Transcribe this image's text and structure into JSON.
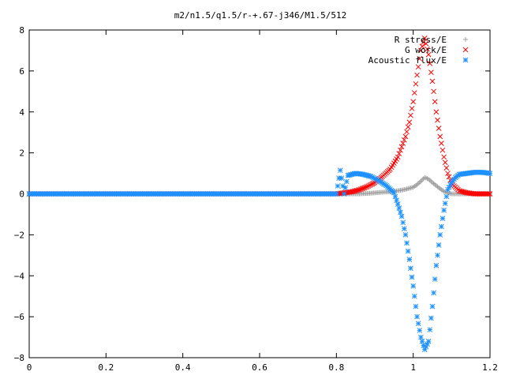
{
  "chart_data": {
    "type": "scatter",
    "title": "m2/n1.5/q1.5/r-+.67-j346/M1.5/512",
    "xlabel": "",
    "ylabel": "",
    "xlim": [
      0,
      1.2
    ],
    "ylim": [
      -8,
      8
    ],
    "x_ticks": [
      "0",
      "0.2",
      "0.4",
      "0.6",
      "0.8",
      "1",
      "1.2"
    ],
    "y_ticks": [
      "8",
      "6",
      "4",
      "2",
      "0",
      "−2",
      "−4",
      "−6",
      "−8"
    ],
    "grid": false,
    "legend_position": "top-right",
    "series": [
      {
        "name": "R stress/E",
        "color": "#a0a0a0",
        "marker": "plus",
        "x": [
          0.0,
          0.1,
          0.2,
          0.3,
          0.4,
          0.5,
          0.6,
          0.7,
          0.8,
          0.82,
          0.84,
          0.86,
          0.88,
          0.9,
          0.92,
          0.94,
          0.96,
          0.98,
          1.0,
          1.01,
          1.02,
          1.03,
          1.04,
          1.05,
          1.06,
          1.07,
          1.08,
          1.09,
          1.1,
          1.12,
          1.14,
          1.16,
          1.18,
          1.2
        ],
        "y": [
          0.0,
          0.0,
          0.0,
          0.0,
          0.0,
          0.0,
          0.0,
          0.0,
          0.0,
          0.0,
          0.0,
          0.0,
          0.02,
          0.05,
          0.08,
          0.1,
          0.15,
          0.22,
          0.32,
          0.45,
          0.62,
          0.8,
          0.72,
          0.55,
          0.4,
          0.25,
          0.12,
          0.05,
          0.0,
          0.0,
          0.0,
          0.0,
          0.0,
          0.0
        ]
      },
      {
        "name": "G work/E",
        "color": "#ff0000",
        "marker": "cross",
        "x": [
          0.0,
          0.1,
          0.2,
          0.3,
          0.4,
          0.5,
          0.6,
          0.7,
          0.8,
          0.82,
          0.84,
          0.86,
          0.88,
          0.9,
          0.92,
          0.94,
          0.96,
          0.98,
          0.99,
          1.0,
          1.01,
          1.02,
          1.03,
          1.04,
          1.05,
          1.06,
          1.07,
          1.08,
          1.09,
          1.1,
          1.12,
          1.14,
          1.16,
          1.18,
          1.2
        ],
        "y": [
          0.0,
          0.0,
          0.0,
          0.0,
          0.0,
          0.0,
          0.0,
          0.0,
          0.0,
          0.05,
          0.1,
          0.2,
          0.35,
          0.55,
          0.85,
          1.2,
          1.8,
          2.8,
          3.5,
          4.5,
          5.8,
          7.0,
          7.6,
          6.8,
          5.5,
          4.0,
          2.8,
          1.8,
          1.0,
          0.5,
          0.15,
          0.05,
          0.0,
          0.0,
          0.0
        ]
      },
      {
        "name": "Acoustic flux/E",
        "color": "#1e90ff",
        "marker": "star",
        "x": [
          0.0,
          0.1,
          0.2,
          0.3,
          0.4,
          0.5,
          0.6,
          0.7,
          0.8,
          0.81,
          0.82,
          0.83,
          0.85,
          0.87,
          0.89,
          0.91,
          0.93,
          0.95,
          0.96,
          0.97,
          0.98,
          0.99,
          1.0,
          1.01,
          1.02,
          1.03,
          1.04,
          1.05,
          1.06,
          1.07,
          1.08,
          1.09,
          1.1,
          1.11,
          1.12,
          1.14,
          1.16,
          1.18,
          1.2
        ],
        "y": [
          0.0,
          0.0,
          0.0,
          0.0,
          0.0,
          0.0,
          0.0,
          0.0,
          0.0,
          1.15,
          0.0,
          0.9,
          1.0,
          0.95,
          0.85,
          0.65,
          0.4,
          0.05,
          -0.5,
          -1.1,
          -2.0,
          -3.2,
          -4.5,
          -6.0,
          -7.0,
          -7.6,
          -7.2,
          -5.5,
          -3.5,
          -2.0,
          -0.8,
          0.2,
          0.55,
          0.8,
          0.95,
          1.0,
          1.05,
          1.05,
          1.0
        ]
      }
    ]
  }
}
